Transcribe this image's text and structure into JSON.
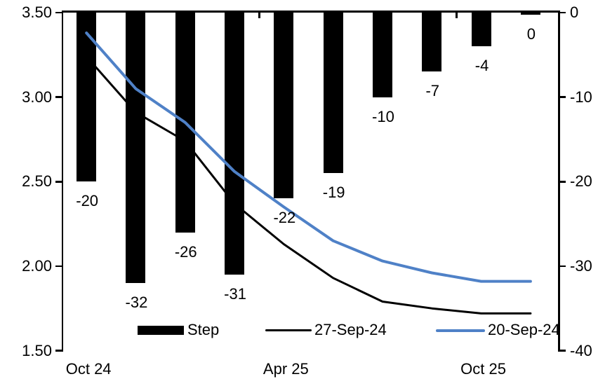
{
  "chart_data": {
    "type": "combo-bar-line",
    "title": "",
    "n_categories": 10,
    "bar_series": {
      "name": "Step",
      "axis": "right",
      "color": "#000000",
      "values": [
        -20,
        -32,
        -26,
        -31,
        -22,
        -19,
        -10,
        -7,
        -4,
        0
      ],
      "labels": [
        "-20",
        "-32",
        "-26",
        "-31",
        "-22",
        "-19",
        "-10",
        "-7",
        "-4",
        "0"
      ]
    },
    "line_series": [
      {
        "name": "27-Sep-24",
        "axis": "left",
        "color": "#000000",
        "stroke_width": 3,
        "values": [
          3.24,
          2.91,
          2.74,
          2.37,
          2.13,
          1.93,
          1.79,
          1.75,
          1.72,
          1.72
        ]
      },
      {
        "name": "20-Sep-24",
        "axis": "left",
        "color": "#4F81C7",
        "stroke_width": 4,
        "values": [
          3.38,
          3.05,
          2.85,
          2.56,
          2.35,
          2.15,
          2.03,
          1.96,
          1.91,
          1.91
        ]
      }
    ],
    "left_axis": {
      "min": 1.5,
      "max": 3.5,
      "tick_labels": [
        "3.50",
        "3.00",
        "2.50",
        "2.00",
        "1.50"
      ]
    },
    "right_axis": {
      "min": -40,
      "max": 0,
      "tick_labels": [
        "0",
        "-10",
        "-20",
        "-30",
        "-40"
      ]
    },
    "x_axis": {
      "tick_labels": [
        {
          "category_index": 0,
          "label": "Oct 24"
        },
        {
          "category_index": 4,
          "label": "Apr 25"
        },
        {
          "category_index": 8,
          "label": "Oct 25"
        }
      ],
      "boundary_ticks": [
        4,
        8
      ]
    },
    "legend": {
      "position": "bottom-inside",
      "items": [
        {
          "label": "Step",
          "type": "bar",
          "color": "#000000"
        },
        {
          "label": "27-Sep-24",
          "type": "line",
          "color": "#000000"
        },
        {
          "label": "20-Sep-24",
          "type": "line",
          "color": "#4F81C7"
        }
      ]
    },
    "grid": "off",
    "background": "#ffffff"
  }
}
